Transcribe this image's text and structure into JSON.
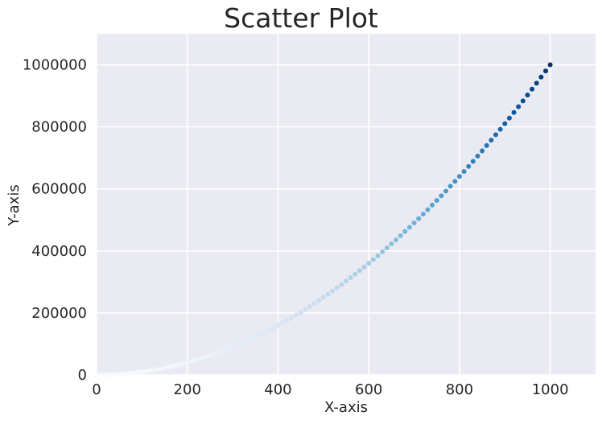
{
  "chart_data": {
    "type": "scatter",
    "title": "Scatter Plot",
    "xlabel": "X-axis",
    "ylabel": "Y-axis",
    "xlim": [
      0,
      1100
    ],
    "ylim": [
      0,
      1100000
    ],
    "x_ticks": [
      0,
      200,
      400,
      600,
      800,
      1000
    ],
    "y_ticks": [
      0,
      200000,
      400000,
      600000,
      800000,
      1000000
    ],
    "x_tick_labels": [
      "0",
      "200",
      "400",
      "600",
      "800",
      "1000"
    ],
    "y_tick_labels": [
      "0",
      "200000",
      "400000",
      "600000",
      "800000",
      "1000000"
    ],
    "grid": true,
    "colormap": "Blues",
    "colors": {
      "background": "#eaeaf2",
      "grid": "#ffffff",
      "light": "#f7fbff",
      "dark": "#08306b"
    },
    "series": [
      {
        "x_range": [
          0,
          1000
        ],
        "x_step": 10,
        "formula": "y = x^2",
        "color_by": "y"
      }
    ]
  }
}
